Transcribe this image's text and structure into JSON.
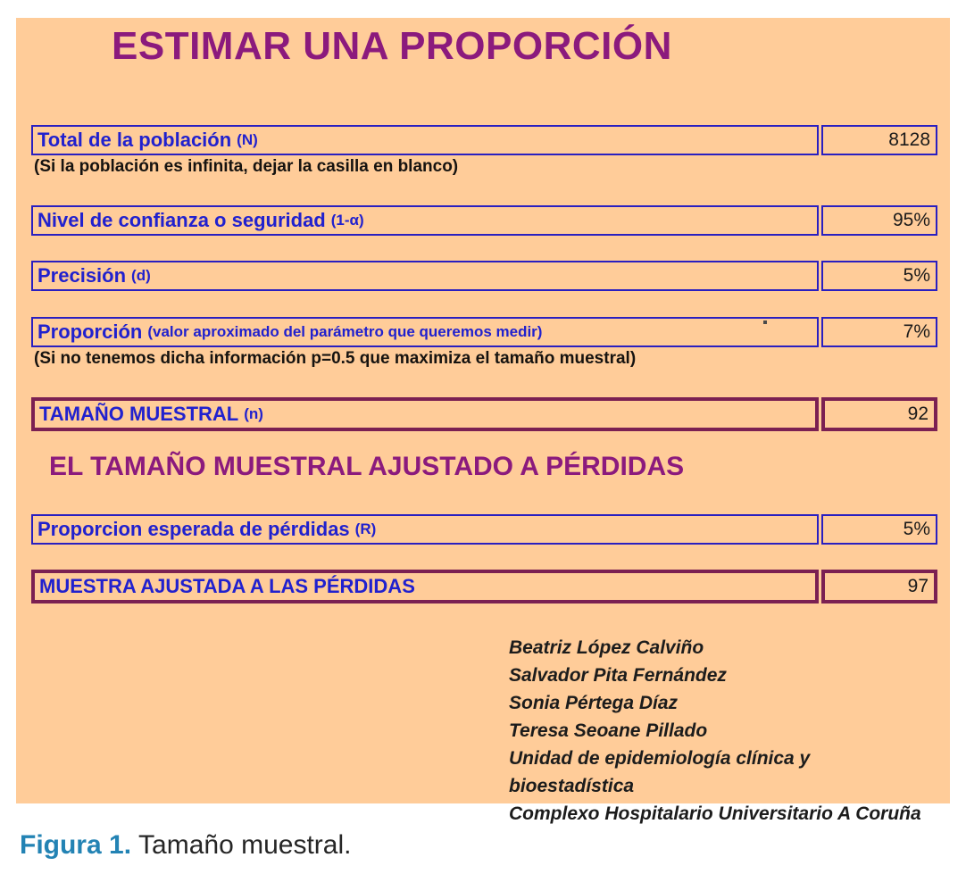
{
  "panel": {
    "title": "ESTIMAR UNA PROPORCIÓN",
    "section2_title": "EL TAMAÑO MUESTRAL AJUSTADO A PÉRDIDAS",
    "bg_color": "#FFCC99",
    "accent_blue": "#2121CE",
    "accent_maroon": "#7B2052",
    "accent_purple": "#8B1A7D"
  },
  "fields": [
    {
      "label": "Total de la población",
      "suffix": "(N)",
      "value": "8128",
      "note": "(Si la población es infinita, dejar la casilla en blanco)"
    },
    {
      "label": "Nivel de confianza o seguridad",
      "suffix": "(1-α)",
      "value": "95%"
    },
    {
      "label": "Precisión",
      "suffix": "(d)",
      "value": "5%"
    },
    {
      "label": "Proporción",
      "suffix": "(valor aproximado del parámetro que queremos medir)",
      "value": "7%",
      "note": "(Si no tenemos dicha información p=0.5 que maximiza el tamaño muestral)"
    },
    {
      "label": "TAMAÑO MUESTRAL",
      "suffix": "(n)",
      "value": "92"
    },
    {
      "label": "Proporcion esperada de pérdidas",
      "suffix": "(R)",
      "value": "5%"
    },
    {
      "label": "MUESTRA AJUSTADA A LAS PÉRDIDAS",
      "suffix": "",
      "value": "97"
    }
  ],
  "credits": [
    "Beatriz López Calviño",
    "Salvador Pita Fernández",
    "Sonia Pértega Díaz",
    "Teresa Seoane Pillado",
    "Unidad de epidemiología clínica y bioestadística",
    "Complexo Hospitalario Universitario A Coruña"
  ],
  "caption": {
    "label": "Figura 1.",
    "text": "Tamaño muestral."
  }
}
